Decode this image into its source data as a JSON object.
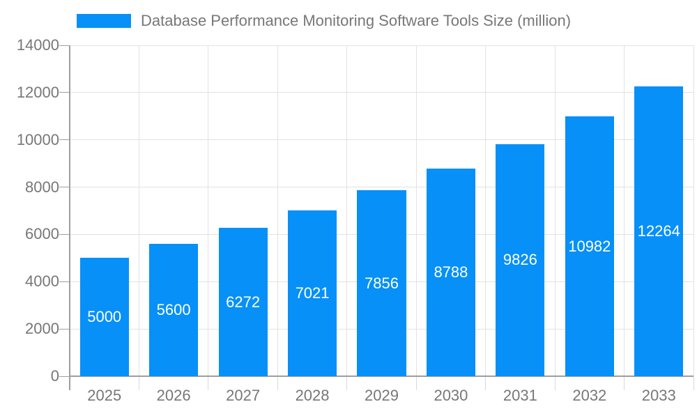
{
  "legend": {
    "label": "Database Performance Monitoring Software Tools Size (million)"
  },
  "colors": {
    "bar": "#0690f8",
    "grid": "#e2e2e2",
    "axis": "#9e9e9e",
    "tick_text": "#777777",
    "bar_value_text": "#ffffff"
  },
  "chart_data": {
    "type": "bar",
    "title": "Database Performance Monitoring Software Tools Size (million)",
    "series_name": "Database Performance Monitoring Software Tools Size (million)",
    "categories": [
      "2025",
      "2026",
      "2027",
      "2028",
      "2029",
      "2030",
      "2031",
      "2032",
      "2033"
    ],
    "values": [
      5000,
      5600,
      6272,
      7021,
      7856,
      8788,
      9826,
      10982,
      12264
    ],
    "xlabel": "",
    "ylabel": "",
    "ylim": [
      0,
      14000
    ],
    "ytick_step": 2000,
    "yticks": [
      0,
      2000,
      4000,
      6000,
      8000,
      10000,
      12000,
      14000
    ],
    "grid": true,
    "legend_position": "top-left",
    "value_labels": "inside-center",
    "bar_color": "#0690f8"
  }
}
